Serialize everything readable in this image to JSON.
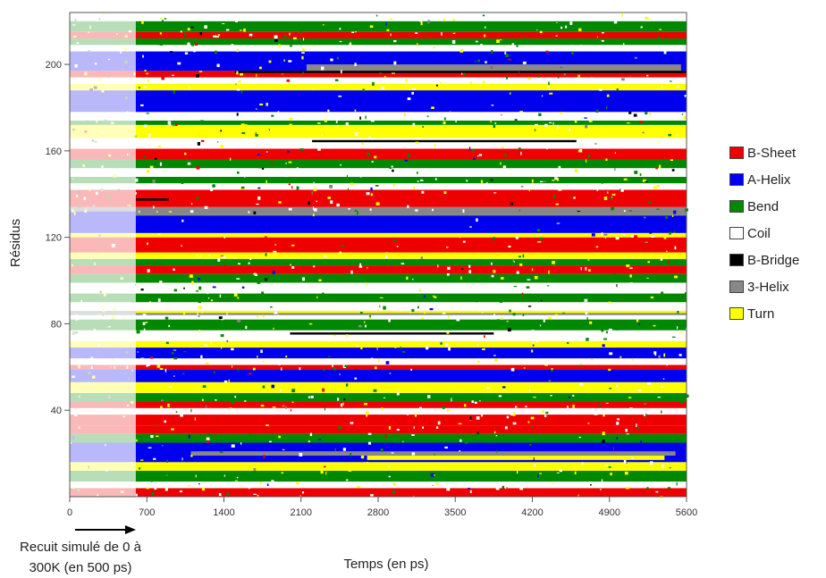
{
  "chart_data": {
    "type": "heatmap",
    "title": "",
    "xlabel": "Temps (en ps)",
    "ylabel": "Résidus",
    "xlim": [
      0,
      5600
    ],
    "ylim": [
      0,
      224
    ],
    "x_ticks": [
      0,
      700,
      1400,
      2100,
      2800,
      3500,
      4200,
      4900,
      5600
    ],
    "y_ticks": [
      40,
      80,
      120,
      160,
      200
    ],
    "grid": false,
    "legend_position": "right",
    "annotation": {
      "lines": [
        "Recuit simulé de 0 à",
        "300K (en 500 ps)"
      ],
      "arrow_from_x": 0,
      "arrow_to_x": 600
    },
    "annealing_phase": {
      "x_end": 600,
      "shading": "faded"
    },
    "categories": [
      {
        "name": "B-Sheet",
        "color": "#ee0000"
      },
      {
        "name": "A-Helix",
        "color": "#0000ee"
      },
      {
        "name": "Bend",
        "color": "#008800"
      },
      {
        "name": "Coil",
        "color": "#ffffff"
      },
      {
        "name": "B-Bridge",
        "color": "#000000"
      },
      {
        "name": "3-Helix",
        "color": "#888888"
      },
      {
        "name": "Turn",
        "color": "#ffff00"
      }
    ],
    "residue_bands": [
      {
        "start": 1,
        "end": 4,
        "state": "B-Sheet"
      },
      {
        "start": 5,
        "end": 7,
        "state": "Coil"
      },
      {
        "start": 8,
        "end": 12,
        "state": "Bend"
      },
      {
        "start": 13,
        "end": 16,
        "state": "Turn"
      },
      {
        "start": 17,
        "end": 25,
        "state": "A-Helix"
      },
      {
        "start": 26,
        "end": 29,
        "state": "Bend"
      },
      {
        "start": 30,
        "end": 33,
        "state": "B-Sheet"
      },
      {
        "start": 34,
        "end": 38,
        "state": "B-Sheet"
      },
      {
        "start": 39,
        "end": 41,
        "state": "Coil"
      },
      {
        "start": 42,
        "end": 44,
        "state": "B-Sheet"
      },
      {
        "start": 45,
        "end": 48,
        "state": "Bend"
      },
      {
        "start": 49,
        "end": 53,
        "state": "Turn"
      },
      {
        "start": 54,
        "end": 59,
        "state": "A-Helix"
      },
      {
        "start": 60,
        "end": 61,
        "state": "B-Sheet"
      },
      {
        "start": 62,
        "end": 64,
        "state": "Coil"
      },
      {
        "start": 65,
        "end": 69,
        "state": "A-Helix"
      },
      {
        "start": 70,
        "end": 72,
        "state": "Turn"
      },
      {
        "start": 73,
        "end": 77,
        "state": "Coil"
      },
      {
        "start": 78,
        "end": 82,
        "state": "Bend"
      },
      {
        "start": 83,
        "end": 84,
        "state": "Coil"
      },
      {
        "start": 85,
        "end": 86,
        "state": "3-Helix"
      },
      {
        "start": 87,
        "end": 90,
        "state": "Coil"
      },
      {
        "start": 91,
        "end": 94,
        "state": "Bend"
      },
      {
        "start": 95,
        "end": 99,
        "state": "Coil"
      },
      {
        "start": 100,
        "end": 103,
        "state": "Bend"
      },
      {
        "start": 104,
        "end": 107,
        "state": "B-Sheet"
      },
      {
        "start": 108,
        "end": 110,
        "state": "Bend"
      },
      {
        "start": 111,
        "end": 113,
        "state": "Turn"
      },
      {
        "start": 114,
        "end": 120,
        "state": "B-Sheet"
      },
      {
        "start": 121,
        "end": 122,
        "state": "Turn"
      },
      {
        "start": 123,
        "end": 132,
        "state": "A-Helix"
      },
      {
        "start": 133,
        "end": 134,
        "state": "3-Helix"
      },
      {
        "start": 135,
        "end": 137,
        "state": "B-Sheet"
      },
      {
        "start": 138,
        "end": 142,
        "state": "B-Sheet"
      },
      {
        "start": 143,
        "end": 145,
        "state": "Coil"
      },
      {
        "start": 146,
        "end": 148,
        "state": "Bend"
      },
      {
        "start": 149,
        "end": 152,
        "state": "Coil"
      },
      {
        "start": 153,
        "end": 156,
        "state": "Bend"
      },
      {
        "start": 157,
        "end": 161,
        "state": "B-Sheet"
      },
      {
        "start": 162,
        "end": 166,
        "state": "Coil"
      },
      {
        "start": 167,
        "end": 172,
        "state": "Turn"
      },
      {
        "start": 173,
        "end": 174,
        "state": "Bend"
      },
      {
        "start": 175,
        "end": 178,
        "state": "Coil"
      },
      {
        "start": 179,
        "end": 188,
        "state": "A-Helix"
      },
      {
        "start": 189,
        "end": 191,
        "state": "Turn"
      },
      {
        "start": 192,
        "end": 194,
        "state": "Coil"
      },
      {
        "start": 195,
        "end": 197,
        "state": "B-Sheet"
      },
      {
        "start": 198,
        "end": 206,
        "state": "A-Helix"
      },
      {
        "start": 207,
        "end": 209,
        "state": "Coil"
      },
      {
        "start": 210,
        "end": 212,
        "state": "Bend"
      },
      {
        "start": 213,
        "end": 215,
        "state": "B-Sheet"
      },
      {
        "start": 216,
        "end": 220,
        "state": "Bend"
      },
      {
        "start": 221,
        "end": 224,
        "state": "Coil"
      }
    ],
    "overlays": [
      {
        "start": 198,
        "end": 200,
        "x_from": 2150,
        "x_to": 5550,
        "state": "3-Helix"
      },
      {
        "start": 197,
        "end": 197,
        "x_from": 1500,
        "x_to": 5600,
        "state": "B-Bridge"
      },
      {
        "start": 170,
        "end": 171,
        "x_from": 600,
        "x_to": 5600,
        "state": "Turn"
      },
      {
        "start": 165,
        "end": 165,
        "x_from": 2200,
        "x_to": 4600,
        "state": "B-Bridge"
      },
      {
        "start": 138,
        "end": 138,
        "x_from": 600,
        "x_to": 900,
        "state": "B-Bridge"
      },
      {
        "start": 131,
        "end": 132,
        "x_from": 600,
        "x_to": 5600,
        "state": "3-Helix"
      },
      {
        "start": 86,
        "end": 86,
        "x_from": 600,
        "x_to": 5600,
        "state": "Turn"
      },
      {
        "start": 76,
        "end": 76,
        "x_from": 2000,
        "x_to": 3850,
        "state": "B-Bridge"
      },
      {
        "start": 20,
        "end": 21,
        "x_from": 1100,
        "x_to": 5500,
        "state": "3-Helix"
      },
      {
        "start": 18,
        "end": 19,
        "x_from": 2700,
        "x_to": 5400,
        "state": "Turn"
      }
    ]
  }
}
